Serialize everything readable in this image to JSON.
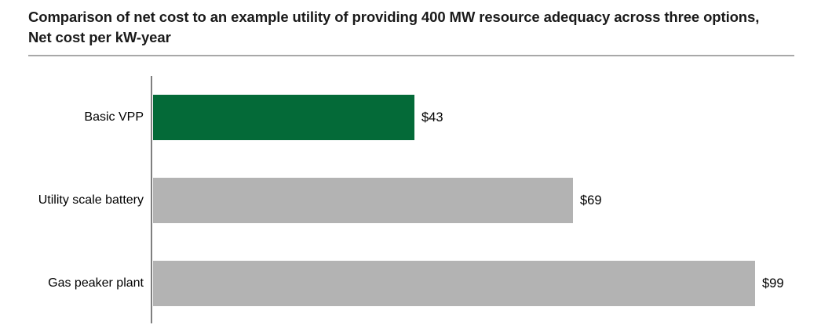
{
  "chart_data": {
    "type": "bar",
    "orientation": "horizontal",
    "title": "Comparison of net cost to an example utility of providing 400 MW resource adequacy across three options, Net cost per kW-year",
    "categories": [
      "Basic VPP",
      "Utility scale battery",
      "Gas peaker plant"
    ],
    "values": [
      43,
      69,
      99
    ],
    "value_labels": [
      "$43",
      "$69",
      "$99"
    ],
    "bar_colors": [
      "#046a38",
      "#b3b3b3",
      "#b3b3b3"
    ],
    "xlim": [
      0,
      99
    ],
    "grid": false,
    "legend": false,
    "x_axis_ticks_visible": false,
    "value_label_position": "outside-end"
  },
  "colors": {
    "accent_green": "#046a38",
    "bar_gray": "#b3b3b3",
    "axis_line": "#7f7f7f",
    "title_rule": "#a8a8a8",
    "title_text": "#1a1a1a",
    "label_text": "#000000"
  }
}
